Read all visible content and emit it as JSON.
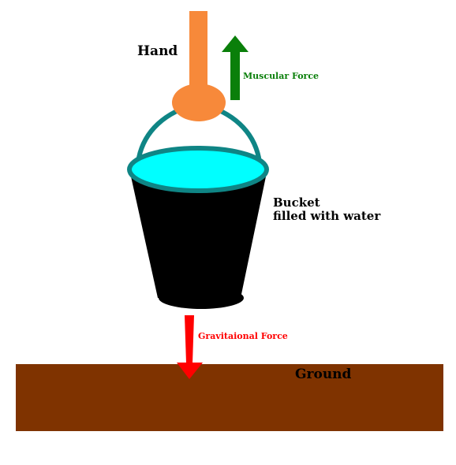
{
  "labels": {
    "hand": "Hand",
    "muscular_force": "Muscular Force",
    "bucket_line1": "Bucket",
    "bucket_line2": "filled with water",
    "gravitational_force": "Gravitaional Force",
    "ground": "Ground"
  },
  "colors": {
    "hand": "#f7893a",
    "handle": "#0f8585",
    "bucket_body": "#000000",
    "water": "#00ffff",
    "rim": "#0f8585",
    "muscular_force": "#0a7f0a",
    "gravitational_force": "#ff0000",
    "ground": "#7f3300",
    "label_text": "#000000"
  }
}
